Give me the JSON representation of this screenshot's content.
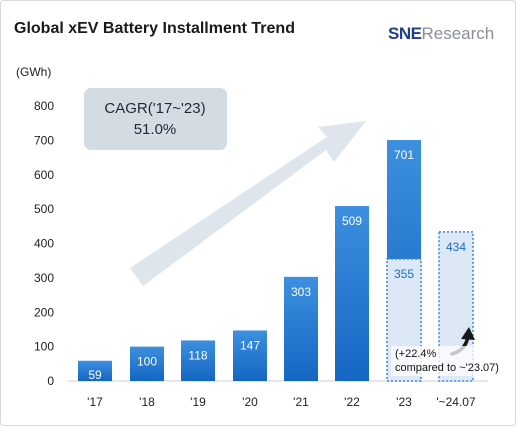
{
  "header": {
    "title": "Global xEV Battery Installment Trend",
    "brand_sne": "SNE",
    "brand_research": "Research"
  },
  "colors": {
    "bar_top": "#3d8fe0",
    "bar_bottom": "#1466c2",
    "label_white": "#ffffff",
    "label_blue": "#1a6cc4",
    "dotted_fill": "#dde8f6",
    "dotted_stroke": "#3a86d6",
    "arrow": "#dfe5ec",
    "cagr_box": "#d3dbe3"
  },
  "chart_data": {
    "type": "bar",
    "ylabel": "(GWh)",
    "ylim": [
      0,
      800
    ],
    "yticks": [
      0,
      100,
      200,
      300,
      400,
      500,
      600,
      700,
      800
    ],
    "categories": [
      "'17",
      "'18",
      "'19",
      "'20",
      "'21",
      "'22",
      "'23",
      "'~24.07"
    ],
    "values": [
      59,
      100,
      118,
      147,
      303,
      509,
      701,
      434
    ],
    "partial_values": {
      "'23": 355
    },
    "annotations": {
      "cagr_line1": "CAGR('17~'23)",
      "cagr_line2": "51.0%",
      "growth_line1": "(+22.4%",
      "growth_line2": "compared to ~'23.07)"
    }
  }
}
